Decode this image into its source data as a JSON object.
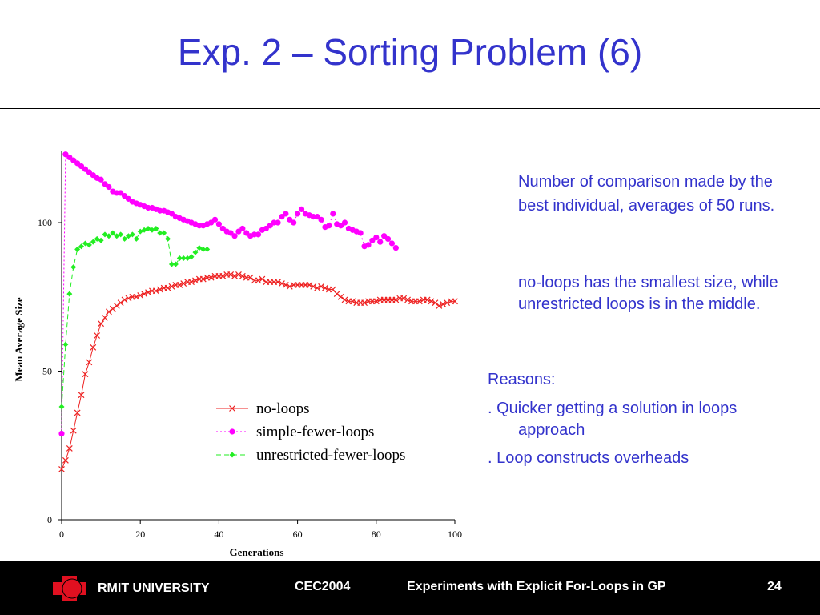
{
  "slide": {
    "title": "Exp. 2 – Sorting Problem (6)",
    "paragraphs": [
      "Number of comparison made by the best individual, averages of 50 runs.",
      "no-loops has the smallest size, while unrestricted loops is in the middle."
    ],
    "reasons_heading": "Reasons:",
    "reasons": [
      ". Quicker getting a solution in loops approach",
      ". Loop constructs overheads"
    ]
  },
  "footer": {
    "university": "RMIT UNIVERSITY",
    "conference": "CEC2004",
    "talk": "Experiments with Explicit For-Loops in GP",
    "page": "24"
  },
  "chart_data": {
    "type": "line",
    "xlabel": "Generations",
    "ylabel": "Mean Average Size",
    "xlim": [
      0,
      100
    ],
    "ylim": [
      0,
      124
    ],
    "xticks": [
      0,
      20,
      40,
      60,
      80,
      100
    ],
    "yticks": [
      0,
      50,
      100
    ],
    "legend": "lower right",
    "x": [
      0,
      1,
      2,
      3,
      4,
      5,
      6,
      7,
      8,
      9,
      10,
      11,
      12,
      13,
      14,
      15,
      16,
      17,
      18,
      19,
      20,
      21,
      22,
      23,
      24,
      25,
      26,
      27,
      28,
      29,
      30,
      31,
      32,
      33,
      34,
      35,
      36,
      37,
      38,
      39,
      40,
      41,
      42,
      43,
      44,
      45,
      46,
      47,
      48,
      49,
      50,
      51,
      52,
      53,
      54,
      55,
      56,
      57,
      58,
      59,
      60,
      61,
      62,
      63,
      64,
      65,
      66,
      67,
      68,
      69,
      70,
      71,
      72,
      73,
      74,
      75,
      76,
      77,
      78,
      79,
      80,
      81,
      82,
      83,
      84,
      85,
      86,
      87,
      88,
      89,
      90,
      91,
      92,
      93,
      94,
      95,
      96,
      97,
      98,
      99,
      100
    ],
    "series": [
      {
        "name": "no-loops",
        "color": "#ee2222",
        "marker": "x",
        "dash": "solid",
        "values": [
          17,
          20,
          24,
          30,
          36,
          42,
          49,
          53,
          58,
          62,
          66,
          68,
          70,
          71,
          72,
          73,
          74,
          74.5,
          75,
          75,
          75.5,
          76,
          76.5,
          77,
          77,
          77.5,
          78,
          78,
          78.5,
          79,
          79,
          79.5,
          80,
          80,
          80.5,
          81,
          81,
          81.5,
          81.5,
          82,
          82,
          82,
          82.5,
          82.5,
          82,
          82.5,
          82,
          81.5,
          81.5,
          80.5,
          80.5,
          81,
          80,
          80,
          80,
          80,
          79.5,
          79,
          78.5,
          79,
          79,
          79,
          79,
          79,
          78.5,
          78,
          78.5,
          78,
          77.5,
          77.5,
          76,
          75,
          74,
          73.5,
          73.5,
          73,
          73,
          73,
          73.5,
          73.5,
          73.5,
          74,
          74,
          74,
          74,
          74,
          74.5,
          74.5,
          74,
          73.5,
          73.5,
          73.5,
          74,
          74,
          73.5,
          73,
          72,
          72.5,
          73,
          73.5,
          73.5
        ]
      },
      {
        "name": "simple-fewer-loops",
        "color": "#ff00ff",
        "marker": "circle",
        "dash": "dotted",
        "values": [
          29,
          123,
          122,
          121,
          120,
          119,
          118,
          117,
          116,
          115,
          114.5,
          113,
          112,
          110.5,
          110,
          110,
          109,
          108,
          107,
          106.5,
          106,
          105.5,
          105,
          105,
          104.5,
          104,
          104,
          103.5,
          103,
          102,
          101.5,
          101,
          100.5,
          100,
          99.5,
          99,
          99,
          99.5,
          100,
          101,
          99.5,
          98,
          97,
          96.5,
          95.5,
          97,
          98,
          96.5,
          95.5,
          96,
          96,
          97.5,
          98,
          99,
          100,
          100,
          102,
          103,
          101,
          100,
          103,
          104.5,
          103,
          102.5,
          102,
          102,
          101,
          98.5,
          99,
          103,
          99.5,
          99,
          100,
          98,
          97.5,
          97,
          96.5,
          92,
          92.5,
          94,
          95,
          93.5,
          95.5,
          94.5,
          93,
          91.5,
          null,
          null,
          null,
          null,
          null,
          null,
          null,
          null,
          null,
          null,
          null,
          null,
          null,
          null,
          null
        ]
      },
      {
        "name": "unrestricted-fewer-loops",
        "color": "#22ee22",
        "marker": "diamond",
        "dash": "dashed",
        "values": [
          38,
          59,
          76,
          85,
          91,
          92,
          93,
          92.5,
          93.5,
          94.5,
          94,
          96,
          95.5,
          96.5,
          95.5,
          96,
          94.5,
          95.5,
          96,
          94.5,
          97,
          97.5,
          98,
          97.5,
          98,
          96.5,
          96.5,
          94.5,
          86,
          86,
          88,
          88,
          88,
          88.5,
          90,
          91.5,
          91,
          91,
          null,
          null,
          null,
          null,
          null,
          null,
          null,
          null,
          null,
          null,
          null,
          null,
          null,
          null,
          null,
          null,
          null,
          null,
          null,
          null,
          null,
          null,
          null,
          null,
          null,
          null,
          null,
          null,
          null,
          null,
          null,
          null,
          null,
          null,
          null,
          null,
          null,
          null,
          null,
          null,
          null,
          null,
          null,
          null,
          null,
          null,
          null,
          null,
          null,
          null,
          null,
          null,
          null,
          null,
          null,
          null,
          null,
          null,
          null,
          null,
          null,
          null,
          null
        ]
      }
    ]
  }
}
